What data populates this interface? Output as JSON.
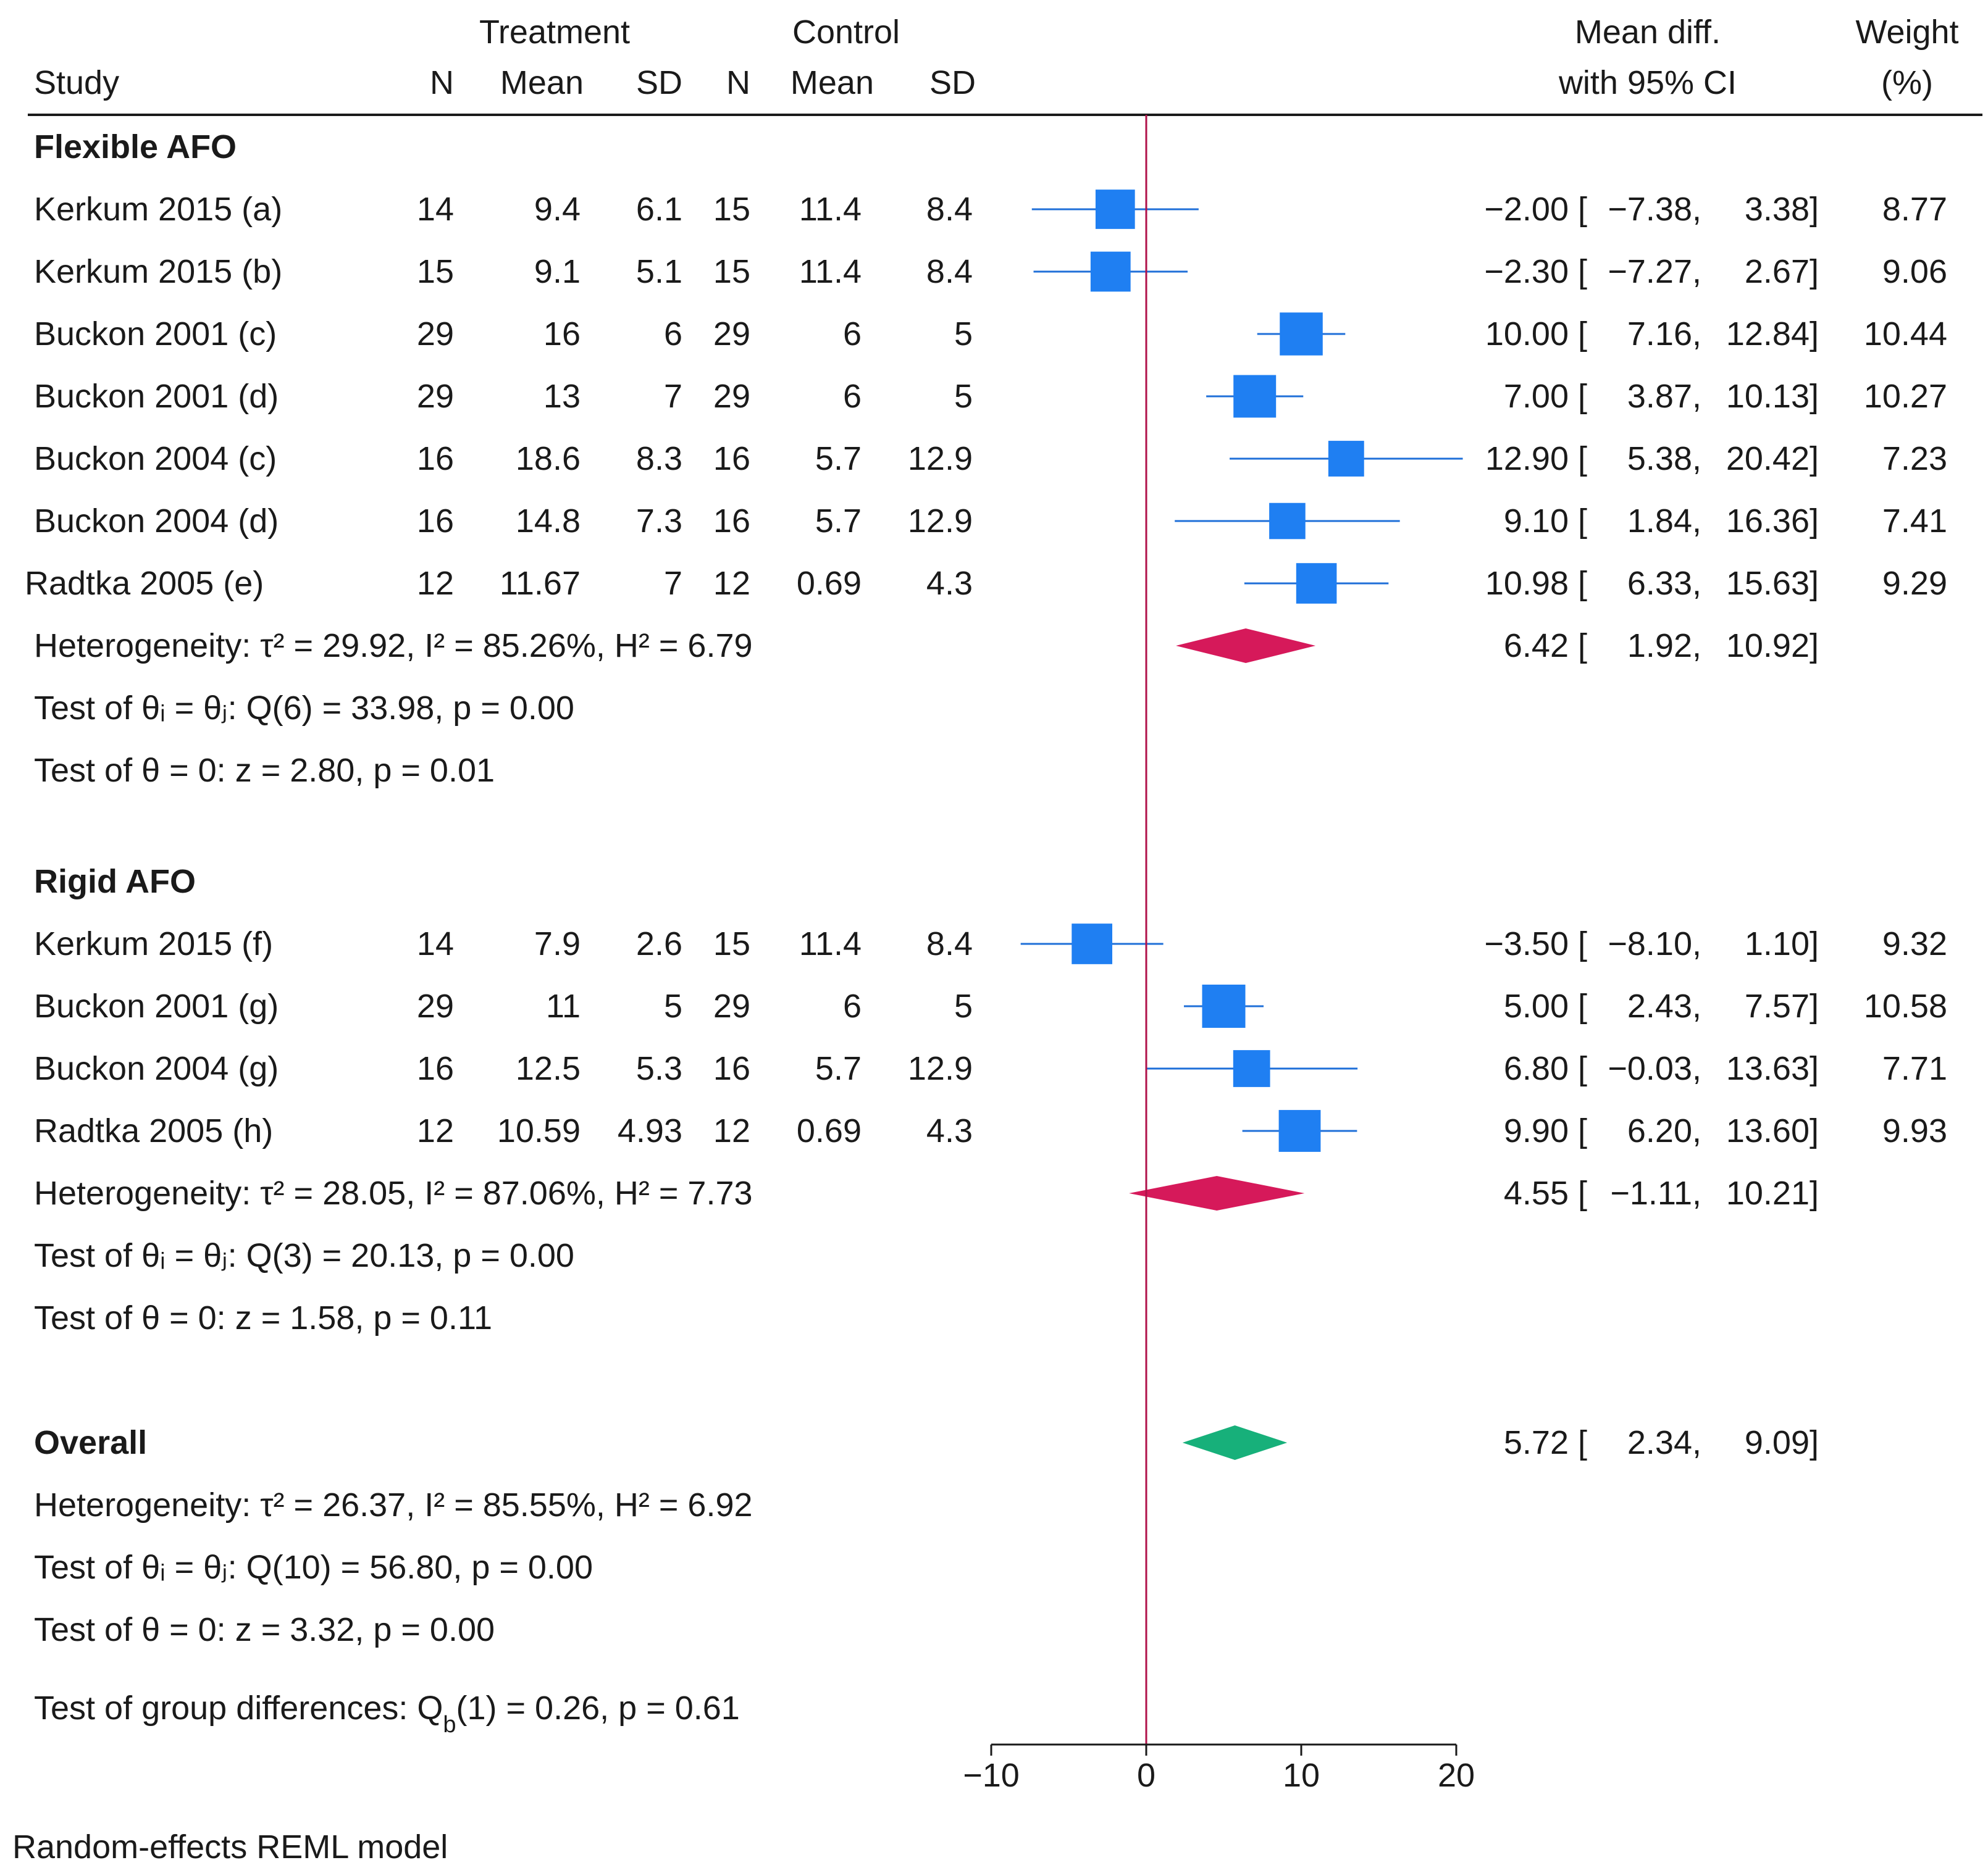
{
  "chart_data": {
    "type": "forest",
    "header": {
      "study": "Study",
      "treatment": "Treatment",
      "control": "Control",
      "n": "N",
      "mean": "Mean",
      "sd": "SD",
      "effect_top": "Mean diff.",
      "effect_bottom": "with 95% CI",
      "weight_top": "Weight",
      "weight_bottom": "(%)"
    },
    "groups": [
      {
        "name": "Flexible AFO",
        "studies": [
          {
            "study": "Kerkum 2015 (a)",
            "t_n": "14",
            "t_mean": "9.4",
            "t_sd": "6.1",
            "c_n": "15",
            "c_mean": "11.4",
            "c_sd": "8.4",
            "md": -2.0,
            "lo": -7.38,
            "hi": 3.38,
            "weight": 8.77,
            "md_text": "−2.00",
            "lo_text": "−7.38,",
            "hi_text": "3.38]",
            "weight_text": "8.77"
          },
          {
            "study": "Kerkum 2015 (b)",
            "t_n": "15",
            "t_mean": "9.1",
            "t_sd": "5.1",
            "c_n": "15",
            "c_mean": "11.4",
            "c_sd": "8.4",
            "md": -2.3,
            "lo": -7.27,
            "hi": 2.67,
            "weight": 9.06,
            "md_text": "−2.30",
            "lo_text": "−7.27,",
            "hi_text": "2.67]",
            "weight_text": "9.06"
          },
          {
            "study": "Buckon 2001 (c)",
            "t_n": "29",
            "t_mean": "16",
            "t_sd": "6",
            "c_n": "29",
            "c_mean": "6",
            "c_sd": "5",
            "md": 10.0,
            "lo": 7.16,
            "hi": 12.84,
            "weight": 10.44,
            "md_text": "10.00",
            "lo_text": "7.16,",
            "hi_text": "12.84]",
            "weight_text": "10.44"
          },
          {
            "study": "Buckon 2001 (d)",
            "t_n": "29",
            "t_mean": "13",
            "t_sd": "7",
            "c_n": "29",
            "c_mean": "6",
            "c_sd": "5",
            "md": 7.0,
            "lo": 3.87,
            "hi": 10.13,
            "weight": 10.27,
            "md_text": "7.00",
            "lo_text": "3.87,",
            "hi_text": "10.13]",
            "weight_text": "10.27"
          },
          {
            "study": "Buckon 2004 (c)",
            "t_n": "16",
            "t_mean": "18.6",
            "t_sd": "8.3",
            "c_n": "16",
            "c_mean": "5.7",
            "c_sd": "12.9",
            "md": 12.9,
            "lo": 5.38,
            "hi": 20.42,
            "weight": 7.23,
            "md_text": "12.90",
            "lo_text": "5.38,",
            "hi_text": "20.42]",
            "weight_text": "7.23"
          },
          {
            "study": "Buckon 2004 (d)",
            "t_n": "16",
            "t_mean": "14.8",
            "t_sd": "7.3",
            "c_n": "16",
            "c_mean": "5.7",
            "c_sd": "12.9",
            "md": 9.1,
            "lo": 1.84,
            "hi": 16.36,
            "weight": 7.41,
            "md_text": "9.10",
            "lo_text": "1.84,",
            "hi_text": "16.36]",
            "weight_text": "7.41"
          },
          {
            "study": "Radtka 2005 (e)",
            "t_n": "12",
            "t_mean": "11.67",
            "t_sd": "7",
            "c_n": "12",
            "c_mean": "0.69",
            "c_sd": "4.3",
            "md": 10.98,
            "lo": 6.33,
            "hi": 15.63,
            "weight": 9.29,
            "md_text": "10.98",
            "lo_text": "6.33,",
            "hi_text": "15.63]",
            "weight_text": "9.29"
          }
        ],
        "summary": {
          "md": 6.42,
          "lo": 1.92,
          "hi": 10.92,
          "md_text": "6.42",
          "lo_text": "1.92,",
          "hi_text": "10.92]"
        },
        "stats": {
          "heterogeneity": "Heterogeneity: τ² = 29.92, I² = 85.26%, H² = 6.79",
          "q_test": "Test of θᵢ = θⱼ: Q(6) = 33.98, p = 0.00",
          "z_test": "Test of θ = 0: z = 2.80, p = 0.01"
        }
      },
      {
        "name": "Rigid AFO",
        "studies": [
          {
            "study": "Kerkum 2015 (f)",
            "t_n": "14",
            "t_mean": "7.9",
            "t_sd": "2.6",
            "c_n": "15",
            "c_mean": "11.4",
            "c_sd": "8.4",
            "md": -3.5,
            "lo": -8.1,
            "hi": 1.1,
            "weight": 9.32,
            "md_text": "−3.50",
            "lo_text": "−8.10,",
            "hi_text": "1.10]",
            "weight_text": "9.32"
          },
          {
            "study": "Buckon 2001 (g)",
            "t_n": "29",
            "t_mean": "11",
            "t_sd": "5",
            "c_n": "29",
            "c_mean": "6",
            "c_sd": "5",
            "md": 5.0,
            "lo": 2.43,
            "hi": 7.57,
            "weight": 10.58,
            "md_text": "5.00",
            "lo_text": "2.43,",
            "hi_text": "7.57]",
            "weight_text": "10.58"
          },
          {
            "study": "Buckon 2004 (g)",
            "t_n": "16",
            "t_mean": "12.5",
            "t_sd": "5.3",
            "c_n": "16",
            "c_mean": "5.7",
            "c_sd": "12.9",
            "md": 6.8,
            "lo": -0.03,
            "hi": 13.63,
            "weight": 7.71,
            "md_text": "6.80",
            "lo_text": "−0.03,",
            "hi_text": "13.63]",
            "weight_text": "7.71"
          },
          {
            "study": "Radtka 2005 (h)",
            "t_n": "12",
            "t_mean": "10.59",
            "t_sd": "4.93",
            "c_n": "12",
            "c_mean": "0.69",
            "c_sd": "4.3",
            "md": 9.9,
            "lo": 6.2,
            "hi": 13.6,
            "weight": 9.93,
            "md_text": "9.90",
            "lo_text": "6.20,",
            "hi_text": "13.60]",
            "weight_text": "9.93"
          }
        ],
        "summary": {
          "md": 4.55,
          "lo": -1.11,
          "hi": 10.21,
          "md_text": "4.55",
          "lo_text": "−1.11,",
          "hi_text": "10.21]"
        },
        "stats": {
          "heterogeneity": "Heterogeneity: τ² = 28.05, I² = 87.06%, H² = 7.73",
          "q_test": "Test of θᵢ = θⱼ: Q(3) = 20.13, p = 0.00",
          "z_test": "Test of θ = 0: z = 1.58, p = 0.11"
        }
      }
    ],
    "overall": {
      "label": "Overall",
      "md": 5.72,
      "lo": 2.34,
      "hi": 9.09,
      "md_text": "5.72",
      "lo_text": "2.34,",
      "hi_text": "9.09]",
      "stats": {
        "heterogeneity": "Heterogeneity: τ² = 26.37, I² = 85.55%, H² = 6.92",
        "q_test": "Test of θᵢ = θⱼ: Q(10) = 56.80, p = 0.00",
        "z_test": "Test of θ = 0: z = 3.32, p = 0.00"
      }
    },
    "group_diff": "Test of group differences: Q_b(1) = 0.26, p = 0.61",
    "x_axis": {
      "min": -10,
      "max": 20,
      "ticks": [
        -10,
        0,
        10,
        20
      ],
      "tick_labels": [
        "−10",
        "0",
        "10",
        "20"
      ],
      "ref_line": 0
    },
    "footnote": "Random-effects REML model",
    "colors": {
      "square": "#1f7ff2",
      "ci_line": "#1f6fd8",
      "subgroup_diamond": "#d6195a",
      "overall_diamond": "#17b07a",
      "ref_line": "#b0124a",
      "text": "#1a1a1a"
    }
  }
}
